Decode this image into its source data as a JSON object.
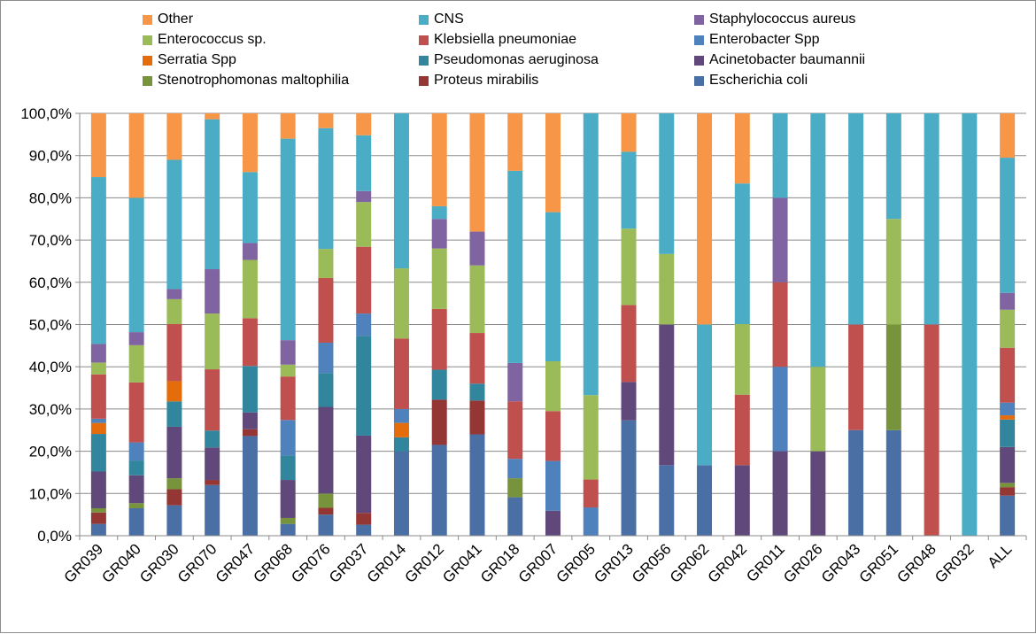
{
  "chart_data": {
    "type": "bar",
    "stacked": true,
    "percent": true,
    "ylim": [
      0,
      100
    ],
    "y_ticks": [
      "0,0%",
      "10,0%",
      "20,0%",
      "30,0%",
      "40,0%",
      "50,0%",
      "60,0%",
      "70,0%",
      "80,0%",
      "90,0%",
      "100,0%"
    ],
    "grid": true,
    "legend_position": "top",
    "categories": [
      "GR039",
      "GR040",
      "GR030",
      "GR070",
      "GR047",
      "GR068",
      "GR076",
      "GR037",
      "GR014",
      "GR012",
      "GR041",
      "GR018",
      "GR007",
      "GR005",
      "GR013",
      "GR056",
      "GR062",
      "GR042",
      "GR011",
      "GR026",
      "GR043",
      "GR051",
      "GR048",
      "GR032",
      "ALL"
    ],
    "series": [
      {
        "name": "Escherichia coli",
        "color": "#4a6fa5",
        "values": [
          2.8,
          6.5,
          7.2,
          12.0,
          23.6,
          2.8,
          5.0,
          2.6,
          20.0,
          21.5,
          24.0,
          9.1,
          0,
          0,
          27.3,
          16.7,
          16.7,
          0,
          0,
          0,
          25.0,
          25.0,
          0,
          0,
          9.5
        ]
      },
      {
        "name": "Proteus mirabilis",
        "color": "#943634",
        "values": [
          2.7,
          0,
          3.8,
          1.2,
          1.6,
          0,
          1.6,
          2.8,
          0,
          10.7,
          8.0,
          0,
          0,
          0,
          0,
          0,
          0,
          0,
          0,
          0,
          0,
          0,
          0,
          0,
          2.0
        ]
      },
      {
        "name": "Stenotrophomonas maltophilia",
        "color": "#77933c",
        "values": [
          1.0,
          1.2,
          2.6,
          0,
          0,
          1.4,
          3.4,
          0,
          0,
          0,
          0,
          4.5,
          0,
          0,
          0,
          0,
          0,
          0,
          0,
          0,
          0,
          25.0,
          0,
          0,
          1.0
        ]
      },
      {
        "name": "Acinetobacter baumannii",
        "color": "#60497a",
        "values": [
          8.7,
          6.6,
          12.2,
          7.7,
          4.0,
          9.0,
          20.5,
          18.3,
          0,
          0,
          0,
          0,
          5.9,
          0,
          9.1,
          33.3,
          0,
          16.7,
          20.0,
          20.0,
          0,
          0,
          0,
          0,
          8.5
        ]
      },
      {
        "name": "Pseudomonas aeruginosa",
        "color": "#31859c",
        "values": [
          8.9,
          3.5,
          6.0,
          4.0,
          11.0,
          5.8,
          8.0,
          23.6,
          3.3,
          7.1,
          4.0,
          0,
          0,
          0,
          0,
          0,
          0,
          0,
          0,
          0,
          0,
          0,
          0,
          0,
          6.5
        ]
      },
      {
        "name": "Serratia Spp",
        "color": "#e46c0a",
        "values": [
          2.6,
          0,
          4.8,
          0,
          0,
          0,
          0,
          0,
          3.4,
          0,
          0,
          0,
          0,
          0,
          0,
          0,
          0,
          0,
          0,
          0,
          0,
          0,
          0,
          0,
          1.0
        ]
      },
      {
        "name": "Enterobacter Spp",
        "color": "#4f81bd",
        "values": [
          1.0,
          4.3,
          0,
          0,
          0,
          8.4,
          7.2,
          5.3,
          3.3,
          0,
          0,
          4.6,
          11.8,
          6.7,
          0,
          0,
          0,
          0,
          20.0,
          0,
          0,
          0,
          0,
          0,
          3.0
        ]
      },
      {
        "name": "Klebsiella pneumoniae",
        "color": "#c0504d",
        "values": [
          10.5,
          14.2,
          13.5,
          14.5,
          11.3,
          10.3,
          15.3,
          15.8,
          16.7,
          14.4,
          12.0,
          13.6,
          11.8,
          6.6,
          18.2,
          0,
          0,
          16.7,
          20.0,
          0,
          25.0,
          0,
          50.0,
          0,
          13.0
        ]
      },
      {
        "name": "Enterococcus sp.",
        "color": "#9bbb59",
        "values": [
          2.8,
          8.8,
          5.9,
          13.2,
          13.8,
          2.8,
          6.9,
          10.6,
          16.6,
          14.3,
          16.0,
          0,
          11.8,
          20.0,
          18.1,
          16.7,
          0,
          16.7,
          0,
          20.0,
          0,
          25.0,
          0,
          0,
          9.0
        ]
      },
      {
        "name": "Staphylococcus aureus",
        "color": "#8064a2",
        "values": [
          4.4,
          3.1,
          2.4,
          10.5,
          4.0,
          5.8,
          0,
          2.6,
          0,
          7.0,
          8.0,
          9.1,
          0,
          0,
          0,
          0,
          0,
          0,
          20.0,
          0,
          0,
          0,
          0,
          0,
          4.0
        ]
      },
      {
        "name": "CNS",
        "color": "#4bacc6",
        "values": [
          39.5,
          31.8,
          30.6,
          35.5,
          16.8,
          47.7,
          28.6,
          13.2,
          36.7,
          3.0,
          0,
          45.5,
          35.3,
          66.7,
          18.2,
          33.3,
          33.3,
          33.3,
          20.0,
          60.0,
          50.0,
          25.0,
          50.0,
          100.0,
          32.0
        ]
      },
      {
        "name": "Other",
        "color": "#f79646",
        "values": [
          15.1,
          20.0,
          11.0,
          1.4,
          13.9,
          6.0,
          3.5,
          5.2,
          0,
          22.0,
          28.0,
          13.6,
          23.4,
          0,
          9.1,
          0,
          50.0,
          16.6,
          0,
          0,
          0,
          0,
          0,
          0,
          10.5
        ]
      }
    ],
    "legend_order": [
      "Other",
      "CNS",
      "Staphylococcus aureus",
      "Enterococcus sp.",
      "Klebsiella pneumoniae",
      "Enterobacter Spp",
      "Serratia Spp",
      "Pseudomonas aeruginosa",
      "Acinetobacter baumannii",
      "Stenotrophomonas maltophilia",
      "Proteus mirabilis",
      "Escherichia coli"
    ]
  }
}
